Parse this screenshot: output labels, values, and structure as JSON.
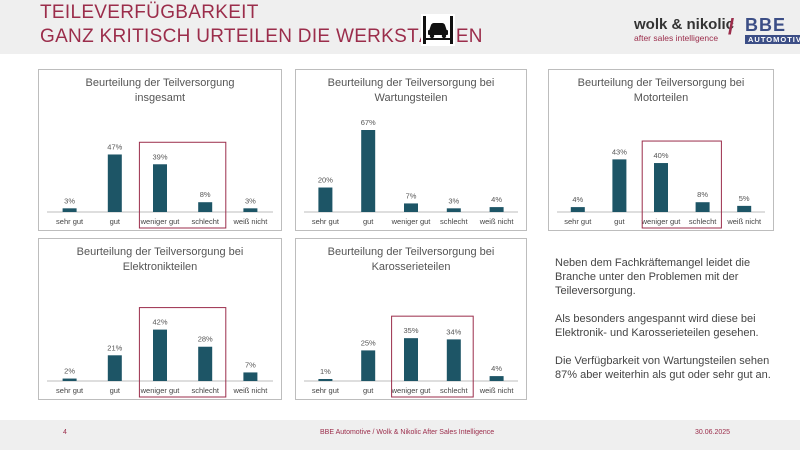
{
  "header": {
    "title_line1": "TEILEVERFÜGBARKEIT",
    "title_line2": "GANZ KRITISCH URTEILEN DIE WERKSTÄTTEN",
    "logo_left": "wolk & nikolic",
    "logo_tagline": "after sales intelligence",
    "logo_slash": "/",
    "logo_right": "BBE",
    "logo_right_sub": "AUTOMOTIVE"
  },
  "colors": {
    "bar": "#1d5566",
    "accent": "#9b2d4b"
  },
  "chart_data": [
    {
      "type": "bar",
      "title_line1": "Beurteilung der Teilversorgung",
      "title_line2": "insgesamt",
      "categories": [
        "sehr gut",
        "gut",
        "weniger gut",
        "schlecht",
        "weiß nicht"
      ],
      "values": [
        3,
        47,
        39,
        8,
        3
      ],
      "value_labels": [
        "3%",
        "47%",
        "39%",
        "8%",
        "3%"
      ],
      "highlight": [
        "weniger gut",
        "schlecht"
      ],
      "ylim": [
        0,
        67
      ]
    },
    {
      "type": "bar",
      "title_line1": "Beurteilung der Teilversorgung bei",
      "title_line2": "Wartungsteilen",
      "categories": [
        "sehr gut",
        "gut",
        "weniger gut",
        "schlecht",
        "weiß nicht"
      ],
      "values": [
        20,
        67,
        7,
        3,
        4
      ],
      "value_labels": [
        "20%",
        "67%",
        "7%",
        "3%",
        "4%"
      ],
      "highlight": [],
      "ylim": [
        0,
        67
      ]
    },
    {
      "type": "bar",
      "title_line1": "Beurteilung der Teilversorgung bei",
      "title_line2": "Motorteilen",
      "categories": [
        "sehr gut",
        "gut",
        "weniger gut",
        "schlecht",
        "weiß nicht"
      ],
      "values": [
        4,
        43,
        40,
        8,
        5
      ],
      "value_labels": [
        "4%",
        "43%",
        "40%",
        "8%",
        "5%"
      ],
      "highlight": [
        "weniger gut",
        "schlecht"
      ],
      "ylim": [
        0,
        67
      ]
    },
    {
      "type": "bar",
      "title_line1": "Beurteilung der Teilversorgung bei",
      "title_line2": "Elektronikteilen",
      "categories": [
        "sehr gut",
        "gut",
        "weniger gut",
        "schlecht",
        "weiß nicht"
      ],
      "values": [
        2,
        21,
        42,
        28,
        7
      ],
      "value_labels": [
        "2%",
        "21%",
        "42%",
        "28%",
        "7%"
      ],
      "highlight": [
        "weniger gut",
        "schlecht"
      ],
      "ylim": [
        0,
        67
      ]
    },
    {
      "type": "bar",
      "title_line1": "Beurteilung der Teilversorgung bei",
      "title_line2": "Karosserieteilen",
      "categories": [
        "sehr gut",
        "gut",
        "weniger gut",
        "schlecht",
        "weiß nicht"
      ],
      "values": [
        1,
        25,
        35,
        34,
        4
      ],
      "value_labels": [
        "1%",
        "25%",
        "35%",
        "34%",
        "4%"
      ],
      "highlight": [
        "weniger gut",
        "schlecht"
      ],
      "ylim": [
        0,
        67
      ]
    }
  ],
  "notes": [
    "Neben dem Fachkräftemangel leidet die Branche unter den Problemen mit der Teileversorgung.",
    "Als besonders angespannt wird diese bei Elektronik- und Karosserieteilen gesehen.",
    "Die Verfügbarkeit von Wartungsteilen sehen 87% aber weiterhin als gut oder sehr gut an."
  ],
  "footer": {
    "page": "4",
    "source": "BBE Automotive / Wolk & Nikolic After Sales Intelligence",
    "date": "30.06.2025"
  }
}
